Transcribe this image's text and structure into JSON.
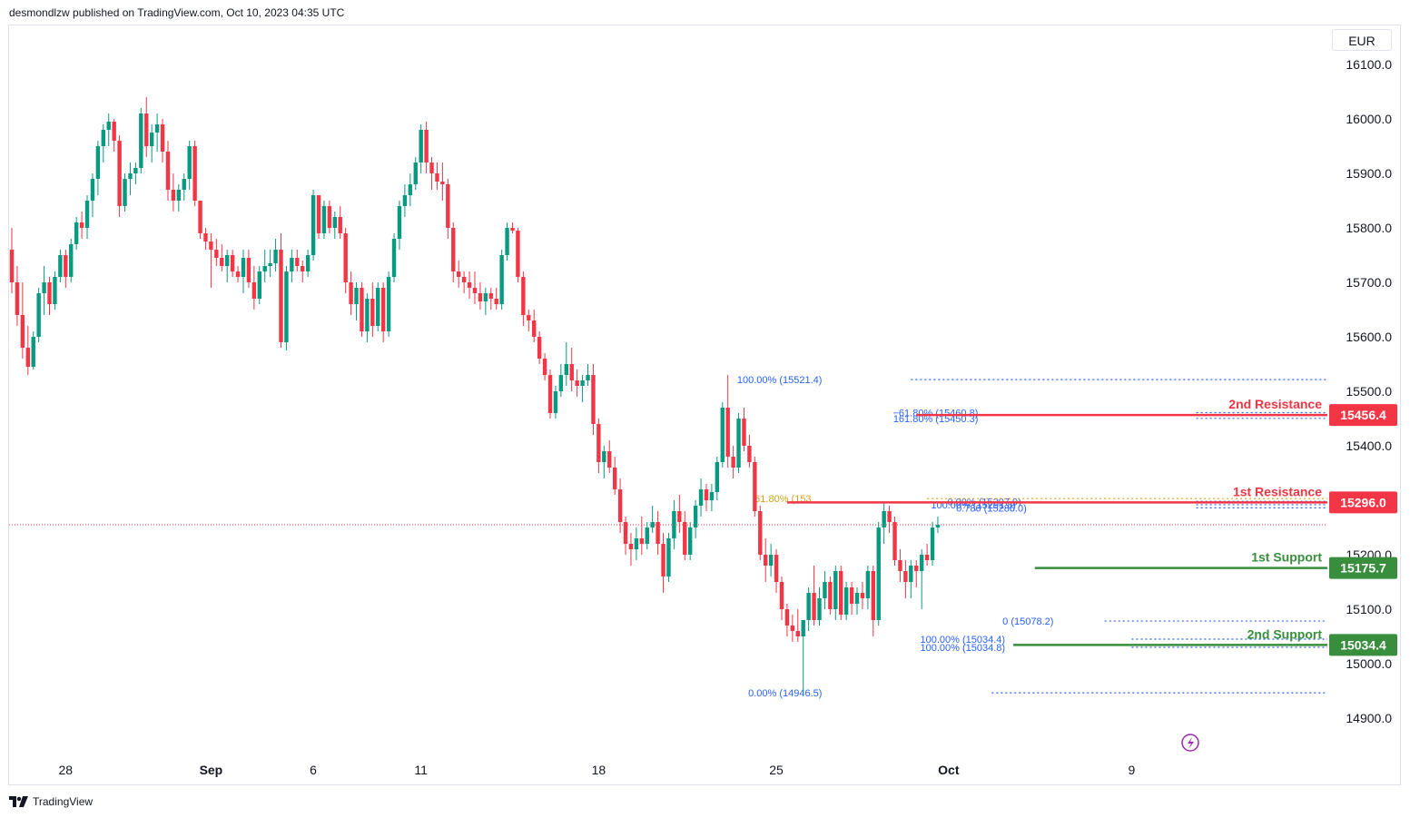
{
  "header": {
    "text": "desmondlzw published on TradingView.com, Oct 10, 2023 04:35 UTC"
  },
  "currency": "EUR",
  "footer": {
    "brand": "TradingView",
    "logo_icon": "tradingview-logo-icon"
  },
  "colors": {
    "up": "#089981",
    "down": "#f23645",
    "resistance": "#f23645",
    "support": "#388e3c",
    "fib": "#2962ff",
    "fib_gold": "#d4a017"
  },
  "chart_data": {
    "type": "candlestick",
    "y_axis": {
      "min": 14850,
      "max": 16150,
      "ticks": [
        14900,
        15000,
        15100,
        15200,
        15300,
        15400,
        15500,
        15600,
        15700,
        15800,
        15900,
        16000,
        16100
      ],
      "tick_labels": [
        "14900.0",
        "15000.0",
        "15100.0",
        "15200.0",
        "15300.0",
        "15400.0",
        "15500.0",
        "15600.0",
        "15700.0",
        "15800.0",
        "15900.0",
        "16000.0",
        "16100.0"
      ]
    },
    "x_axis": {
      "labels": [
        {
          "label": "28",
          "index": 10
        },
        {
          "label": "Sep",
          "index": 37
        },
        {
          "label": "6",
          "index": 56
        },
        {
          "label": "11",
          "index": 76
        },
        {
          "label": "18",
          "index": 109
        },
        {
          "label": "25",
          "index": 142
        },
        {
          "label": "Oct",
          "index": 174
        },
        {
          "label": "9",
          "index": 208
        }
      ]
    },
    "candles": [
      [
        15760,
        15800,
        15680,
        15700
      ],
      [
        15700,
        15730,
        15620,
        15640
      ],
      [
        15640,
        15700,
        15560,
        15580
      ],
      [
        15580,
        15620,
        15530,
        15545
      ],
      [
        15545,
        15610,
        15540,
        15600
      ],
      [
        15600,
        15690,
        15590,
        15680
      ],
      [
        15680,
        15730,
        15640,
        15700
      ],
      [
        15700,
        15710,
        15640,
        15660
      ],
      [
        15660,
        15720,
        15650,
        15710
      ],
      [
        15710,
        15760,
        15700,
        15750
      ],
      [
        15750,
        15760,
        15690,
        15710
      ],
      [
        15710,
        15780,
        15700,
        15770
      ],
      [
        15770,
        15820,
        15760,
        15810
      ],
      [
        15810,
        15830,
        15780,
        15800
      ],
      [
        15800,
        15860,
        15780,
        15850
      ],
      [
        15850,
        15900,
        15820,
        15890
      ],
      [
        15890,
        15960,
        15860,
        15950
      ],
      [
        15950,
        15990,
        15920,
        15980
      ],
      [
        15980,
        16010,
        15950,
        15995
      ],
      [
        15995,
        16000,
        15940,
        15960
      ],
      [
        15960,
        15970,
        15820,
        15840
      ],
      [
        15840,
        15900,
        15830,
        15890
      ],
      [
        15890,
        15920,
        15860,
        15900
      ],
      [
        15900,
        15920,
        15880,
        15910
      ],
      [
        15910,
        16020,
        15900,
        16010
      ],
      [
        16010,
        16040,
        15930,
        15950
      ],
      [
        15950,
        15990,
        15920,
        15975
      ],
      [
        15975,
        16010,
        15940,
        15990
      ],
      [
        15990,
        16000,
        15920,
        15940
      ],
      [
        15940,
        15960,
        15850,
        15870
      ],
      [
        15870,
        15900,
        15830,
        15850
      ],
      [
        15850,
        15880,
        15830,
        15870
      ],
      [
        15870,
        15900,
        15850,
        15890
      ],
      [
        15890,
        15960,
        15870,
        15950
      ],
      [
        15950,
        15960,
        15840,
        15850
      ],
      [
        15850,
        15850,
        15780,
        15790
      ],
      [
        15790,
        15800,
        15760,
        15775
      ],
      [
        15775,
        15790,
        15690,
        15760
      ],
      [
        15760,
        15780,
        15730,
        15745
      ],
      [
        15745,
        15770,
        15720,
        15730
      ],
      [
        15730,
        15760,
        15700,
        15750
      ],
      [
        15750,
        15760,
        15710,
        15720
      ],
      [
        15720,
        15730,
        15700,
        15710
      ],
      [
        15710,
        15760,
        15680,
        15745
      ],
      [
        15745,
        15760,
        15690,
        15700
      ],
      [
        15700,
        15730,
        15650,
        15670
      ],
      [
        15670,
        15730,
        15660,
        15720
      ],
      [
        15720,
        15760,
        15700,
        15730
      ],
      [
        15730,
        15760,
        15710,
        15735
      ],
      [
        15735,
        15780,
        15720,
        15760
      ],
      [
        15760,
        15790,
        15580,
        15590
      ],
      [
        15590,
        15730,
        15575,
        15720
      ],
      [
        15720,
        15760,
        15700,
        15745
      ],
      [
        15745,
        15760,
        15720,
        15730
      ],
      [
        15730,
        15740,
        15700,
        15720
      ],
      [
        15720,
        15760,
        15710,
        15750
      ],
      [
        15750,
        15870,
        15740,
        15860
      ],
      [
        15860,
        15860,
        15780,
        15790
      ],
      [
        15790,
        15850,
        15780,
        15840
      ],
      [
        15840,
        15850,
        15790,
        15800
      ],
      [
        15800,
        15830,
        15780,
        15820
      ],
      [
        15820,
        15840,
        15780,
        15790
      ],
      [
        15790,
        15800,
        15680,
        15700
      ],
      [
        15700,
        15720,
        15640,
        15660
      ],
      [
        15660,
        15700,
        15630,
        15690
      ],
      [
        15690,
        15700,
        15600,
        15610
      ],
      [
        15610,
        15680,
        15590,
        15670
      ],
      [
        15670,
        15700,
        15600,
        15620
      ],
      [
        15620,
        15700,
        15610,
        15690
      ],
      [
        15690,
        15700,
        15590,
        15610
      ],
      [
        15610,
        15720,
        15600,
        15710
      ],
      [
        15710,
        15790,
        15700,
        15780
      ],
      [
        15780,
        15850,
        15760,
        15840
      ],
      [
        15840,
        15880,
        15820,
        15860
      ],
      [
        15860,
        15900,
        15840,
        15880
      ],
      [
        15880,
        15930,
        15870,
        15920
      ],
      [
        15920,
        15990,
        15900,
        15980
      ],
      [
        15980,
        15995,
        15900,
        15920
      ],
      [
        15920,
        15930,
        15870,
        15900
      ],
      [
        15900,
        15920,
        15870,
        15885
      ],
      [
        15885,
        15920,
        15850,
        15880
      ],
      [
        15880,
        15890,
        15780,
        15800
      ],
      [
        15800,
        15810,
        15700,
        15720
      ],
      [
        15720,
        15740,
        15690,
        15710
      ],
      [
        15710,
        15720,
        15680,
        15700
      ],
      [
        15700,
        15720,
        15670,
        15690
      ],
      [
        15690,
        15720,
        15660,
        15680
      ],
      [
        15680,
        15700,
        15650,
        15665
      ],
      [
        15665,
        15690,
        15640,
        15680
      ],
      [
        15680,
        15690,
        15650,
        15670
      ],
      [
        15670,
        15690,
        15650,
        15660
      ],
      [
        15660,
        15760,
        15650,
        15750
      ],
      [
        15750,
        15810,
        15740,
        15800
      ],
      [
        15800,
        15810,
        15790,
        15795
      ],
      [
        15795,
        15800,
        15700,
        15710
      ],
      [
        15710,
        15720,
        15620,
        15640
      ],
      [
        15640,
        15650,
        15610,
        15630
      ],
      [
        15630,
        15650,
        15590,
        15600
      ],
      [
        15600,
        15610,
        15550,
        15560
      ],
      [
        15560,
        15570,
        15520,
        15530
      ],
      [
        15530,
        15540,
        15450,
        15460
      ],
      [
        15460,
        15510,
        15450,
        15500
      ],
      [
        15500,
        15550,
        15490,
        15530
      ],
      [
        15530,
        15590,
        15510,
        15550
      ],
      [
        15550,
        15580,
        15500,
        15520
      ],
      [
        15520,
        15540,
        15490,
        15510
      ],
      [
        15510,
        15530,
        15480,
        15520
      ],
      [
        15520,
        15550,
        15510,
        15530
      ],
      [
        15530,
        15550,
        15420,
        15440
      ],
      [
        15440,
        15450,
        15350,
        15370
      ],
      [
        15370,
        15400,
        15340,
        15390
      ],
      [
        15390,
        15410,
        15350,
        15360
      ],
      [
        15360,
        15380,
        15310,
        15320
      ],
      [
        15320,
        15340,
        15240,
        15260
      ],
      [
        15260,
        15270,
        15200,
        15220
      ],
      [
        15220,
        15240,
        15180,
        15210
      ],
      [
        15210,
        15250,
        15190,
        15230
      ],
      [
        15230,
        15270,
        15200,
        15220
      ],
      [
        15220,
        15260,
        15210,
        15250
      ],
      [
        15250,
        15290,
        15240,
        15260
      ],
      [
        15260,
        15280,
        15200,
        15220
      ],
      [
        15220,
        15240,
        15130,
        15160
      ],
      [
        15160,
        15240,
        15150,
        15230
      ],
      [
        15230,
        15300,
        15210,
        15280
      ],
      [
        15280,
        15310,
        15240,
        15260
      ],
      [
        15260,
        15280,
        15190,
        15200
      ],
      [
        15200,
        15260,
        15190,
        15250
      ],
      [
        15250,
        15300,
        15230,
        15290
      ],
      [
        15290,
        15340,
        15270,
        15320
      ],
      [
        15320,
        15330,
        15280,
        15300
      ],
      [
        15300,
        15330,
        15280,
        15315
      ],
      [
        15315,
        15380,
        15300,
        15370
      ],
      [
        15370,
        15480,
        15360,
        15470
      ],
      [
        15470,
        15530,
        15360,
        15380
      ],
      [
        15380,
        15400,
        15340,
        15360
      ],
      [
        15360,
        15460,
        15350,
        15450
      ],
      [
        15450,
        15470,
        15390,
        15400
      ],
      [
        15400,
        15420,
        15360,
        15370
      ],
      [
        15370,
        15380,
        15270,
        15280
      ],
      [
        15280,
        15290,
        15190,
        15200
      ],
      [
        15200,
        15230,
        15150,
        15180
      ],
      [
        15180,
        15220,
        15160,
        15200
      ],
      [
        15200,
        15210,
        15130,
        15150
      ],
      [
        15150,
        15160,
        15080,
        15100
      ],
      [
        15100,
        15110,
        15050,
        15070
      ],
      [
        15070,
        15090,
        15040,
        15060
      ],
      [
        15060,
        15100,
        15040,
        15050
      ],
      [
        15050,
        15070,
        14946,
        15080
      ],
      [
        15080,
        15140,
        15060,
        15130
      ],
      [
        15130,
        15180,
        15070,
        15080
      ],
      [
        15080,
        15140,
        15070,
        15120
      ],
      [
        15120,
        15170,
        15100,
        15150
      ],
      [
        15150,
        15160,
        15090,
        15100
      ],
      [
        15100,
        15180,
        15080,
        15170
      ],
      [
        15170,
        15180,
        15080,
        15090
      ],
      [
        15090,
        15150,
        15080,
        15140
      ],
      [
        15140,
        15150,
        15090,
        15110
      ],
      [
        15110,
        15140,
        15090,
        15130
      ],
      [
        15130,
        15150,
        15100,
        15120
      ],
      [
        15120,
        15180,
        15100,
        15170
      ],
      [
        15170,
        15180,
        15050,
        15080
      ],
      [
        15080,
        15260,
        15070,
        15250
      ],
      [
        15250,
        15298,
        15220,
        15280
      ],
      [
        15280,
        15290,
        15240,
        15260
      ],
      [
        15260,
        15270,
        15180,
        15190
      ],
      [
        15190,
        15210,
        15150,
        15170
      ],
      [
        15170,
        15190,
        15120,
        15150
      ],
      [
        15150,
        15190,
        15120,
        15180
      ],
      [
        15180,
        15190,
        15140,
        15170
      ],
      [
        15170,
        15210,
        15100,
        15200
      ],
      [
        15200,
        15220,
        15180,
        15190
      ],
      [
        15190,
        15260,
        15180,
        15250
      ],
      [
        15250,
        15270,
        15240,
        15255
      ]
    ],
    "current_price_line": 15255,
    "levels": [
      {
        "name": "2nd Resistance",
        "value": 15456.4,
        "tag": "15456.4",
        "kind": "resistance",
        "from_index": 168
      },
      {
        "name": "1st Resistance",
        "value": 15296.0,
        "tag": "15296.0",
        "kind": "resistance",
        "from_index": 144
      },
      {
        "name": "1st Support",
        "value": 15175.7,
        "tag": "15175.7",
        "kind": "support",
        "from_index": 190
      },
      {
        "name": "2nd Support",
        "value": 15034.4,
        "tag": "15034.4",
        "kind": "support",
        "from_index": 186
      }
    ],
    "fib_labels": [
      {
        "text": "100.00% (15521.4)",
        "value": 15521.4,
        "index": 151,
        "line_from": 167,
        "color": "fib"
      },
      {
        "text": "−61.80% (15460.8)",
        "value": 15460.8,
        "index": 180,
        "line_from": 220,
        "color": "fib"
      },
      {
        "text": "161.80% (15450.3)",
        "value": 15450.3,
        "index": 180,
        "line_from": 220,
        "color": "fib"
      },
      {
        "text": "0.00% (15297.9)",
        "value": 15297.9,
        "index": 188,
        "line_from": 220,
        "color": "fib"
      },
      {
        "text": "61.80% (153",
        "value": 15303,
        "index": 149,
        "line_from": 170,
        "color": "fib_gold"
      },
      {
        "text": "100.00% (15291.8)",
        "value": 15291.8,
        "index": 187,
        "line_from": 220,
        "color": "fib"
      },
      {
        "text": "0.786 (15286.0)",
        "value": 15286.0,
        "index": 189,
        "line_from": 220,
        "color": "fib"
      },
      {
        "text": "0 (15078.2)",
        "value": 15078.2,
        "index": 194,
        "line_from": 203,
        "color": "fib"
      },
      {
        "text": "100.00% (15034.4)",
        "value": 15045,
        "index": 185,
        "line_from": 208,
        "color": "fib"
      },
      {
        "text": "100.00% (15034.8)",
        "value": 15030,
        "index": 185,
        "line_from": 208,
        "color": "fib"
      },
      {
        "text": "0.00% (14946.5)",
        "value": 14946.5,
        "index": 151,
        "line_from": 182,
        "color": "fib"
      }
    ]
  }
}
